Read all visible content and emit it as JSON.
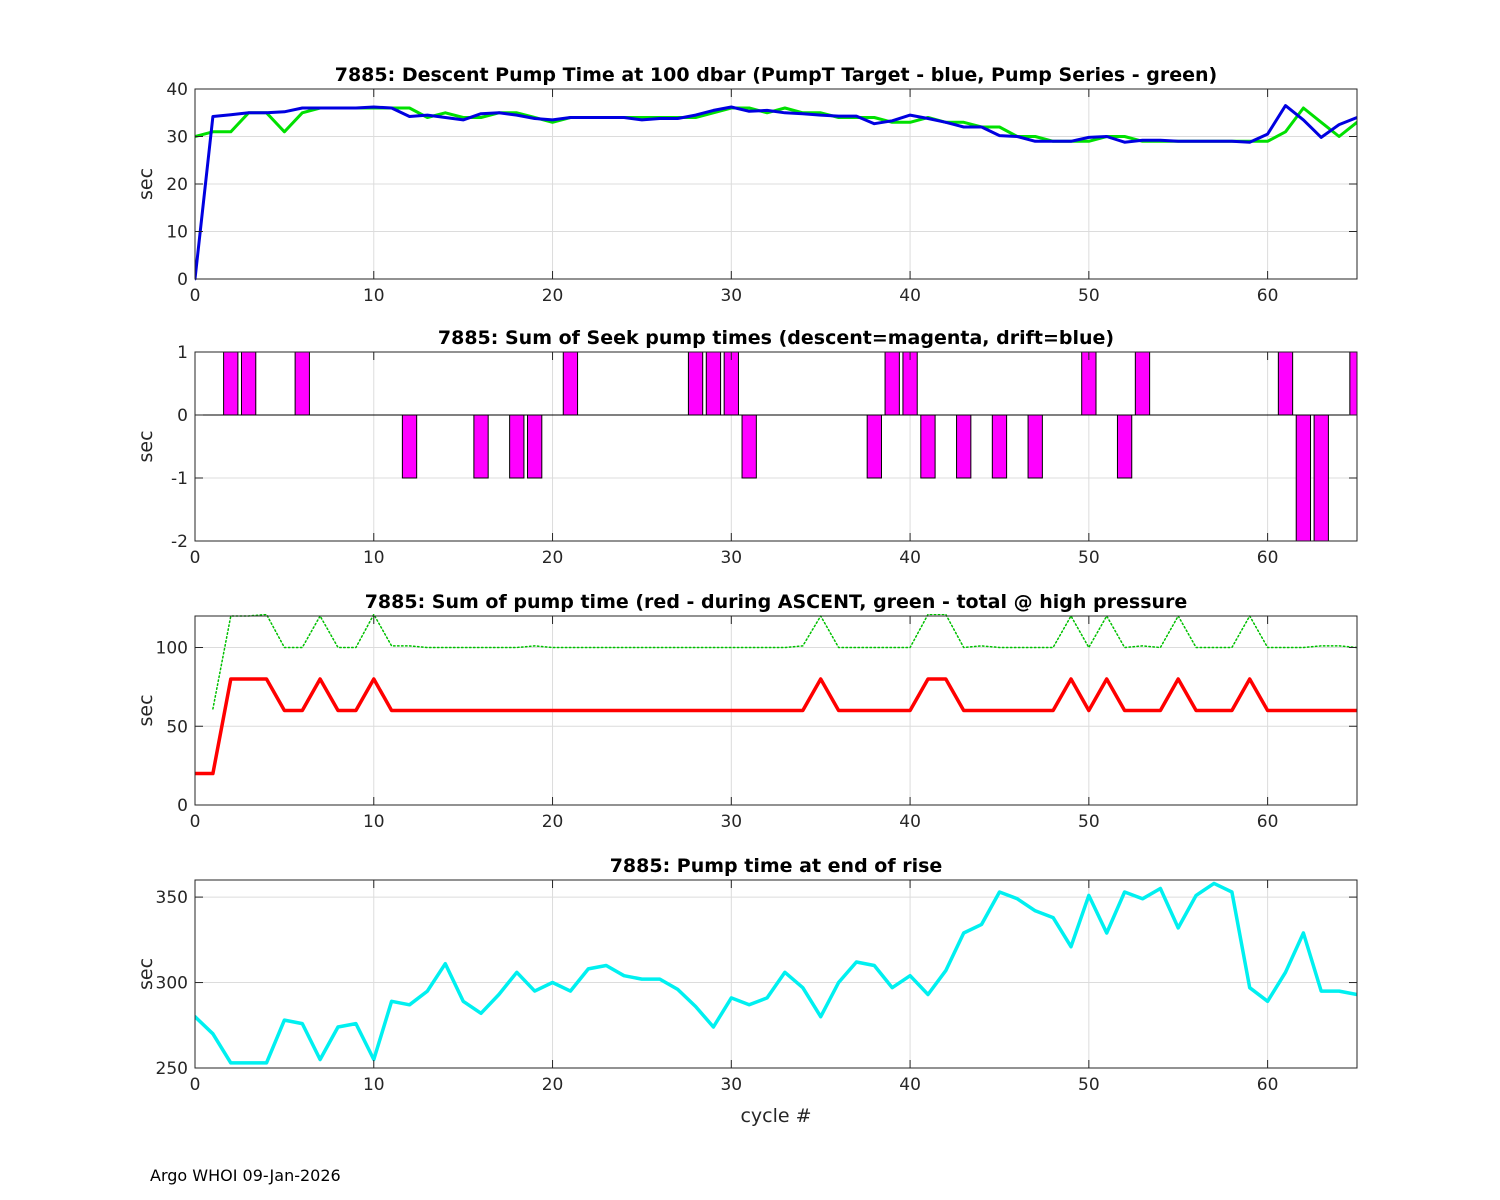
{
  "footer": "Argo WHOI 09-Jan-2026",
  "chart_data": [
    {
      "type": "line",
      "title": "7885: Descent Pump Time at 100 dbar (PumpT Target - blue, Pump Series - green)",
      "xlabel": "",
      "ylabel": "sec",
      "xlim": [
        0,
        65
      ],
      "ylim": [
        0,
        40
      ],
      "xticks": [
        0,
        10,
        20,
        30,
        40,
        50,
        60
      ],
      "yticks": [
        0,
        10,
        20,
        30,
        40
      ],
      "grid": true,
      "series": [
        {
          "name": "Pump Series",
          "color": "#00e000",
          "style": "solid",
          "width": 3,
          "x": [
            0,
            1,
            2,
            3,
            4,
            5,
            6,
            7,
            8,
            9,
            10,
            11,
            12,
            13,
            14,
            15,
            16,
            17,
            18,
            19,
            20,
            21,
            22,
            23,
            24,
            25,
            26,
            27,
            28,
            29,
            30,
            31,
            32,
            33,
            34,
            35,
            36,
            37,
            38,
            39,
            40,
            41,
            42,
            43,
            44,
            45,
            46,
            47,
            48,
            49,
            50,
            51,
            52,
            53,
            54,
            55,
            56,
            57,
            58,
            59,
            60,
            61,
            62,
            63,
            64,
            65
          ],
          "values": [
            30,
            31,
            31,
            35,
            35,
            31,
            35,
            36,
            36,
            36,
            36,
            36,
            36,
            34,
            35,
            34,
            34,
            35,
            35,
            34,
            33,
            34,
            34,
            34,
            34,
            34,
            34,
            34,
            34,
            35,
            36,
            36,
            35,
            36,
            35,
            35,
            34,
            34,
            34,
            33,
            33,
            34,
            33,
            33,
            32,
            32,
            30,
            30,
            29,
            29,
            29,
            30,
            30,
            29,
            29,
            29,
            29,
            29,
            29,
            29,
            29,
            31,
            36,
            33,
            30,
            33
          ]
        },
        {
          "name": "PumpT Target",
          "color": "#0000e0",
          "style": "solid",
          "width": 3,
          "x": [
            0,
            1,
            2,
            3,
            4,
            5,
            6,
            7,
            8,
            9,
            10,
            11,
            12,
            13,
            14,
            15,
            16,
            17,
            18,
            19,
            20,
            21,
            22,
            23,
            24,
            25,
            26,
            27,
            28,
            29,
            30,
            31,
            32,
            33,
            34,
            35,
            36,
            37,
            38,
            39,
            40,
            41,
            42,
            43,
            44,
            45,
            46,
            47,
            48,
            49,
            50,
            51,
            52,
            53,
            54,
            55,
            56,
            57,
            58,
            59,
            60,
            61,
            62,
            63,
            64,
            65
          ],
          "values": [
            0,
            34.2,
            34.6,
            35,
            35,
            35.2,
            36,
            36,
            36,
            36,
            36.2,
            36,
            34.2,
            34.5,
            34,
            33.5,
            34.8,
            35,
            34.5,
            33.8,
            33.5,
            34,
            34,
            34,
            34,
            33.5,
            33.8,
            33.8,
            34.5,
            35.5,
            36.2,
            35.3,
            35.5,
            35,
            34.8,
            34.5,
            34.3,
            34.3,
            32.7,
            33.3,
            34.5,
            33.8,
            33,
            32,
            32,
            30.2,
            30,
            29,
            29,
            29,
            29.8,
            30,
            28.8,
            29.2,
            29.2,
            29,
            29,
            29,
            29,
            28.8,
            30.5,
            36.5,
            33.5,
            29.8,
            32.5,
            34
          ]
        }
      ]
    },
    {
      "type": "bar",
      "title": "7885: Sum of Seek pump times (descent=magenta, drift=blue)",
      "xlabel": "",
      "ylabel": "sec",
      "xlim": [
        0,
        65
      ],
      "ylim": [
        -2,
        1
      ],
      "xticks": [
        0,
        10,
        20,
        30,
        40,
        50,
        60
      ],
      "yticks": [
        -2,
        -1,
        0,
        1
      ],
      "grid": true,
      "series": [
        {
          "name": "descent",
          "color": "#ff00ff",
          "x": [
            2,
            3,
            6,
            12,
            16,
            18,
            19,
            21,
            28,
            29,
            30,
            31,
            38,
            39,
            40,
            41,
            43,
            45,
            47,
            50,
            52,
            53,
            61,
            62,
            63,
            65
          ],
          "values": [
            1,
            1,
            1,
            -1,
            -1,
            -1,
            -1,
            1,
            1,
            1,
            1,
            -1,
            -1,
            1,
            1,
            -1,
            -1,
            -1,
            -1,
            1,
            -1,
            1,
            1,
            -2,
            -2,
            1
          ]
        }
      ]
    },
    {
      "type": "line",
      "title": "7885: Sum of pump time (red - during ASCENT, green - total @ high pressure",
      "xlabel": "",
      "ylabel": "sec",
      "xlim": [
        0,
        65
      ],
      "ylim": [
        0,
        120
      ],
      "xticks": [
        0,
        10,
        20,
        30,
        40,
        50,
        60
      ],
      "yticks": [
        0,
        50,
        100
      ],
      "grid": true,
      "series": [
        {
          "name": "total @ high pressure",
          "color": "#00c000",
          "style": "dotted",
          "width": 1.5,
          "x": [
            1,
            2,
            3,
            4,
            5,
            6,
            7,
            8,
            9,
            10,
            11,
            12,
            13,
            14,
            15,
            16,
            17,
            18,
            19,
            20,
            21,
            22,
            23,
            24,
            25,
            26,
            27,
            28,
            29,
            30,
            31,
            32,
            33,
            34,
            35,
            36,
            37,
            38,
            39,
            40,
            41,
            42,
            43,
            44,
            45,
            46,
            47,
            48,
            49,
            50,
            51,
            52,
            53,
            54,
            55,
            56,
            57,
            58,
            59,
            60,
            61,
            62,
            63,
            64,
            65
          ],
          "values": [
            61,
            120,
            120,
            121,
            100,
            100,
            120,
            100,
            100,
            121,
            101,
            101,
            100,
            100,
            100,
            100,
            100,
            100,
            101,
            100,
            100,
            100,
            100,
            100,
            100,
            100,
            100,
            100,
            100,
            100,
            100,
            100,
            100,
            101,
            120,
            100,
            100,
            100,
            100,
            100,
            121,
            121,
            100,
            101,
            100,
            100,
            100,
            100,
            120,
            100,
            120,
            100,
            101,
            100,
            120,
            100,
            100,
            100,
            120,
            100,
            100,
            100,
            101,
            101,
            100
          ]
        },
        {
          "name": "during ASCENT",
          "color": "#ff0000",
          "style": "solid",
          "width": 3.5,
          "x": [
            0,
            1,
            2,
            3,
            4,
            5,
            6,
            7,
            8,
            9,
            10,
            11,
            12,
            13,
            14,
            15,
            16,
            17,
            18,
            19,
            20,
            21,
            22,
            23,
            24,
            25,
            26,
            27,
            28,
            29,
            30,
            31,
            32,
            33,
            34,
            35,
            36,
            37,
            38,
            39,
            40,
            41,
            42,
            43,
            44,
            45,
            46,
            47,
            48,
            49,
            50,
            51,
            52,
            53,
            54,
            55,
            56,
            57,
            58,
            59,
            60,
            61,
            62,
            63,
            64,
            65
          ],
          "values": [
            20,
            20,
            80,
            80,
            80,
            60,
            60,
            80,
            60,
            60,
            80,
            60,
            60,
            60,
            60,
            60,
            60,
            60,
            60,
            60,
            60,
            60,
            60,
            60,
            60,
            60,
            60,
            60,
            60,
            60,
            60,
            60,
            60,
            60,
            60,
            80,
            60,
            60,
            60,
            60,
            60,
            80,
            80,
            60,
            60,
            60,
            60,
            60,
            60,
            80,
            60,
            80,
            60,
            60,
            60,
            80,
            60,
            60,
            60,
            80,
            60,
            60,
            60,
            60,
            60,
            60
          ]
        }
      ]
    },
    {
      "type": "line",
      "title": "7885: Pump time at end of rise",
      "xlabel": "cycle #",
      "ylabel": "sec",
      "xlim": [
        0,
        65
      ],
      "ylim": [
        250,
        360
      ],
      "xticks": [
        0,
        10,
        20,
        30,
        40,
        50,
        60
      ],
      "yticks": [
        250,
        300,
        350
      ],
      "grid": true,
      "series": [
        {
          "name": "end of rise",
          "color": "#00f0f0",
          "style": "solid",
          "width": 3.5,
          "x": [
            0,
            1,
            2,
            3,
            4,
            5,
            6,
            7,
            8,
            9,
            10,
            11,
            12,
            13,
            14,
            15,
            16,
            17,
            18,
            19,
            20,
            21,
            22,
            23,
            24,
            25,
            26,
            27,
            28,
            29,
            30,
            31,
            32,
            33,
            34,
            35,
            36,
            37,
            38,
            39,
            40,
            41,
            42,
            43,
            44,
            45,
            46,
            47,
            48,
            49,
            50,
            51,
            52,
            53,
            54,
            55,
            56,
            57,
            58,
            59,
            60,
            61,
            62,
            63,
            64,
            65
          ],
          "values": [
            280,
            270,
            253,
            253,
            253,
            278,
            276,
            255,
            274,
            276,
            255,
            289,
            287,
            295,
            311,
            289,
            282,
            293,
            306,
            295,
            300,
            295,
            308,
            310,
            304,
            302,
            302,
            296,
            286,
            274,
            291,
            287,
            291,
            306,
            297,
            280,
            300,
            312,
            310,
            297,
            304,
            293,
            307,
            329,
            334,
            353,
            349,
            342,
            338,
            321,
            351,
            329,
            353,
            349,
            355,
            332,
            351,
            358,
            353,
            297,
            289,
            306,
            329,
            295,
            295,
            293
          ]
        }
      ]
    }
  ]
}
